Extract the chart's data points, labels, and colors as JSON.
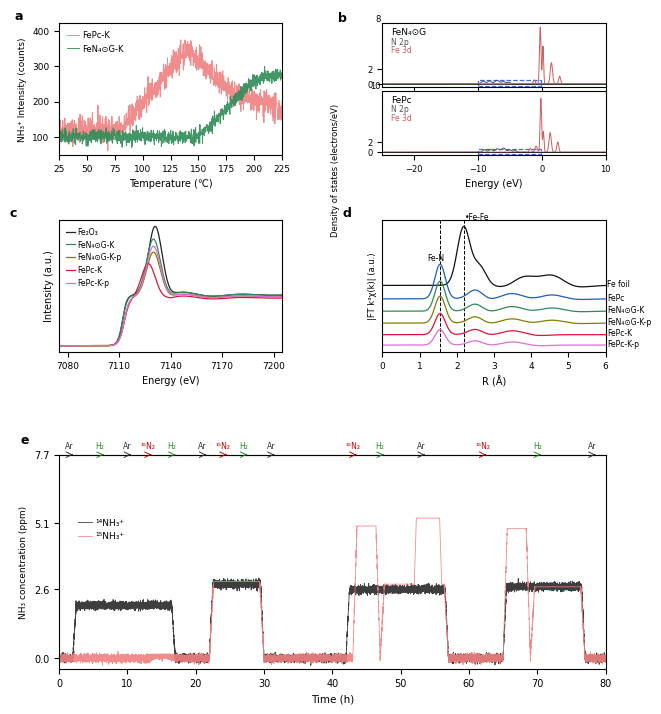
{
  "panel_a": {
    "xlabel": "Temperature (℃)",
    "ylabel": "NH₃⁺ Intensity (counts)",
    "xlim": [
      25,
      225
    ],
    "ylim": [
      50,
      420
    ],
    "yticks": [
      100,
      200,
      300,
      400
    ],
    "xticks": [
      25,
      50,
      75,
      100,
      125,
      150,
      175,
      200,
      225
    ],
    "fepc_k_color": "#f08080",
    "fen4_k_color": "#2e8b57",
    "legend": [
      "FePc-K",
      "FeN₄⊙G-K"
    ]
  },
  "panel_b": {
    "xlabel": "Energy (eV)",
    "ylabel": "Density of states (electrons/eV)",
    "xlim": [
      -25,
      10
    ],
    "xticks": [
      -20,
      -10,
      0,
      10
    ],
    "top_title": "FeN₄⊙G",
    "bottom_title": "FePc",
    "top_ytop_label": "8",
    "bottom_ytop_label": "10",
    "n2p_color": "#555555",
    "fe3d_color": "#cd5c5c",
    "dbox_color": "#4169e1"
  },
  "panel_c": {
    "xlabel": "Energy (eV)",
    "ylabel": "Intensity (a.u.)",
    "xlim": [
      7075,
      7205
    ],
    "xticks": [
      7080,
      7110,
      7140,
      7170,
      7200
    ],
    "legend": [
      "Fe₂O₃",
      "FeN₄⊙G-K",
      "FeN₄⊙G-K-p",
      "FePc-K",
      "FePc-K-p"
    ],
    "colors": [
      "#222222",
      "#2e8b57",
      "#808000",
      "#dc143c",
      "#da70d6"
    ]
  },
  "panel_d": {
    "xlabel": "R (Å)",
    "ylabel": "|FT k³χ(k)| (a.u.)",
    "xlim": [
      0,
      6
    ],
    "xticks": [
      0,
      1,
      2,
      3,
      4,
      5,
      6
    ],
    "legend": [
      "Fe foil",
      "FePc",
      "FeN₄⊙G-K",
      "FeN₄⊙G-K-p",
      "FePc-K",
      "FePc-K-p"
    ],
    "colors": [
      "#111111",
      "#1e5eb5",
      "#2e8b57",
      "#808000",
      "#dc143c",
      "#da70d6"
    ],
    "fe_fe_x": 2.18,
    "fe_n_x": 1.55
  },
  "panel_e": {
    "xlabel": "Time (h)",
    "ylabel": "NH₃ concentration (ppm)",
    "xlim": [
      0,
      80
    ],
    "ylim": [
      -0.4,
      6.0
    ],
    "yticks": [
      0.0,
      2.6,
      5.1,
      7.7
    ],
    "xticks": [
      0,
      10,
      20,
      30,
      40,
      50,
      60,
      70,
      80
    ],
    "nh3_14_color": "#333333",
    "nh3_15_color": "#f08080",
    "legend": [
      "¹⁴NH₃⁺",
      "¹⁵NH₃⁺"
    ],
    "gas_labels": [
      "Ar",
      "H₂",
      "Ar",
      "¹⁵N₂",
      "H₂",
      "Ar",
      "¹⁵N₂",
      "H₂",
      "Ar",
      "¹⁵N₂",
      "H₂",
      "Ar",
      "¹⁵N₂",
      "H₂",
      "Ar"
    ],
    "gas_x": [
      1.5,
      6,
      10,
      13,
      16.5,
      21,
      24,
      27,
      31,
      43,
      47,
      53,
      62,
      70,
      78
    ],
    "gas_colors": [
      "#333333",
      "#228b22",
      "#333333",
      "#cc0000",
      "#228b22",
      "#333333",
      "#cc0000",
      "#228b22",
      "#333333",
      "#cc0000",
      "#228b22",
      "#333333",
      "#cc0000",
      "#228b22",
      "#333333"
    ],
    "arrow_colors": [
      "#333333",
      "#228b22",
      "#333333",
      "#cc0000",
      "#228b22",
      "#333333",
      "#cc0000",
      "#228b22",
      "#333333",
      "#cc0000",
      "#228b22",
      "#333333",
      "#cc0000",
      "#228b22",
      "#333333"
    ]
  }
}
